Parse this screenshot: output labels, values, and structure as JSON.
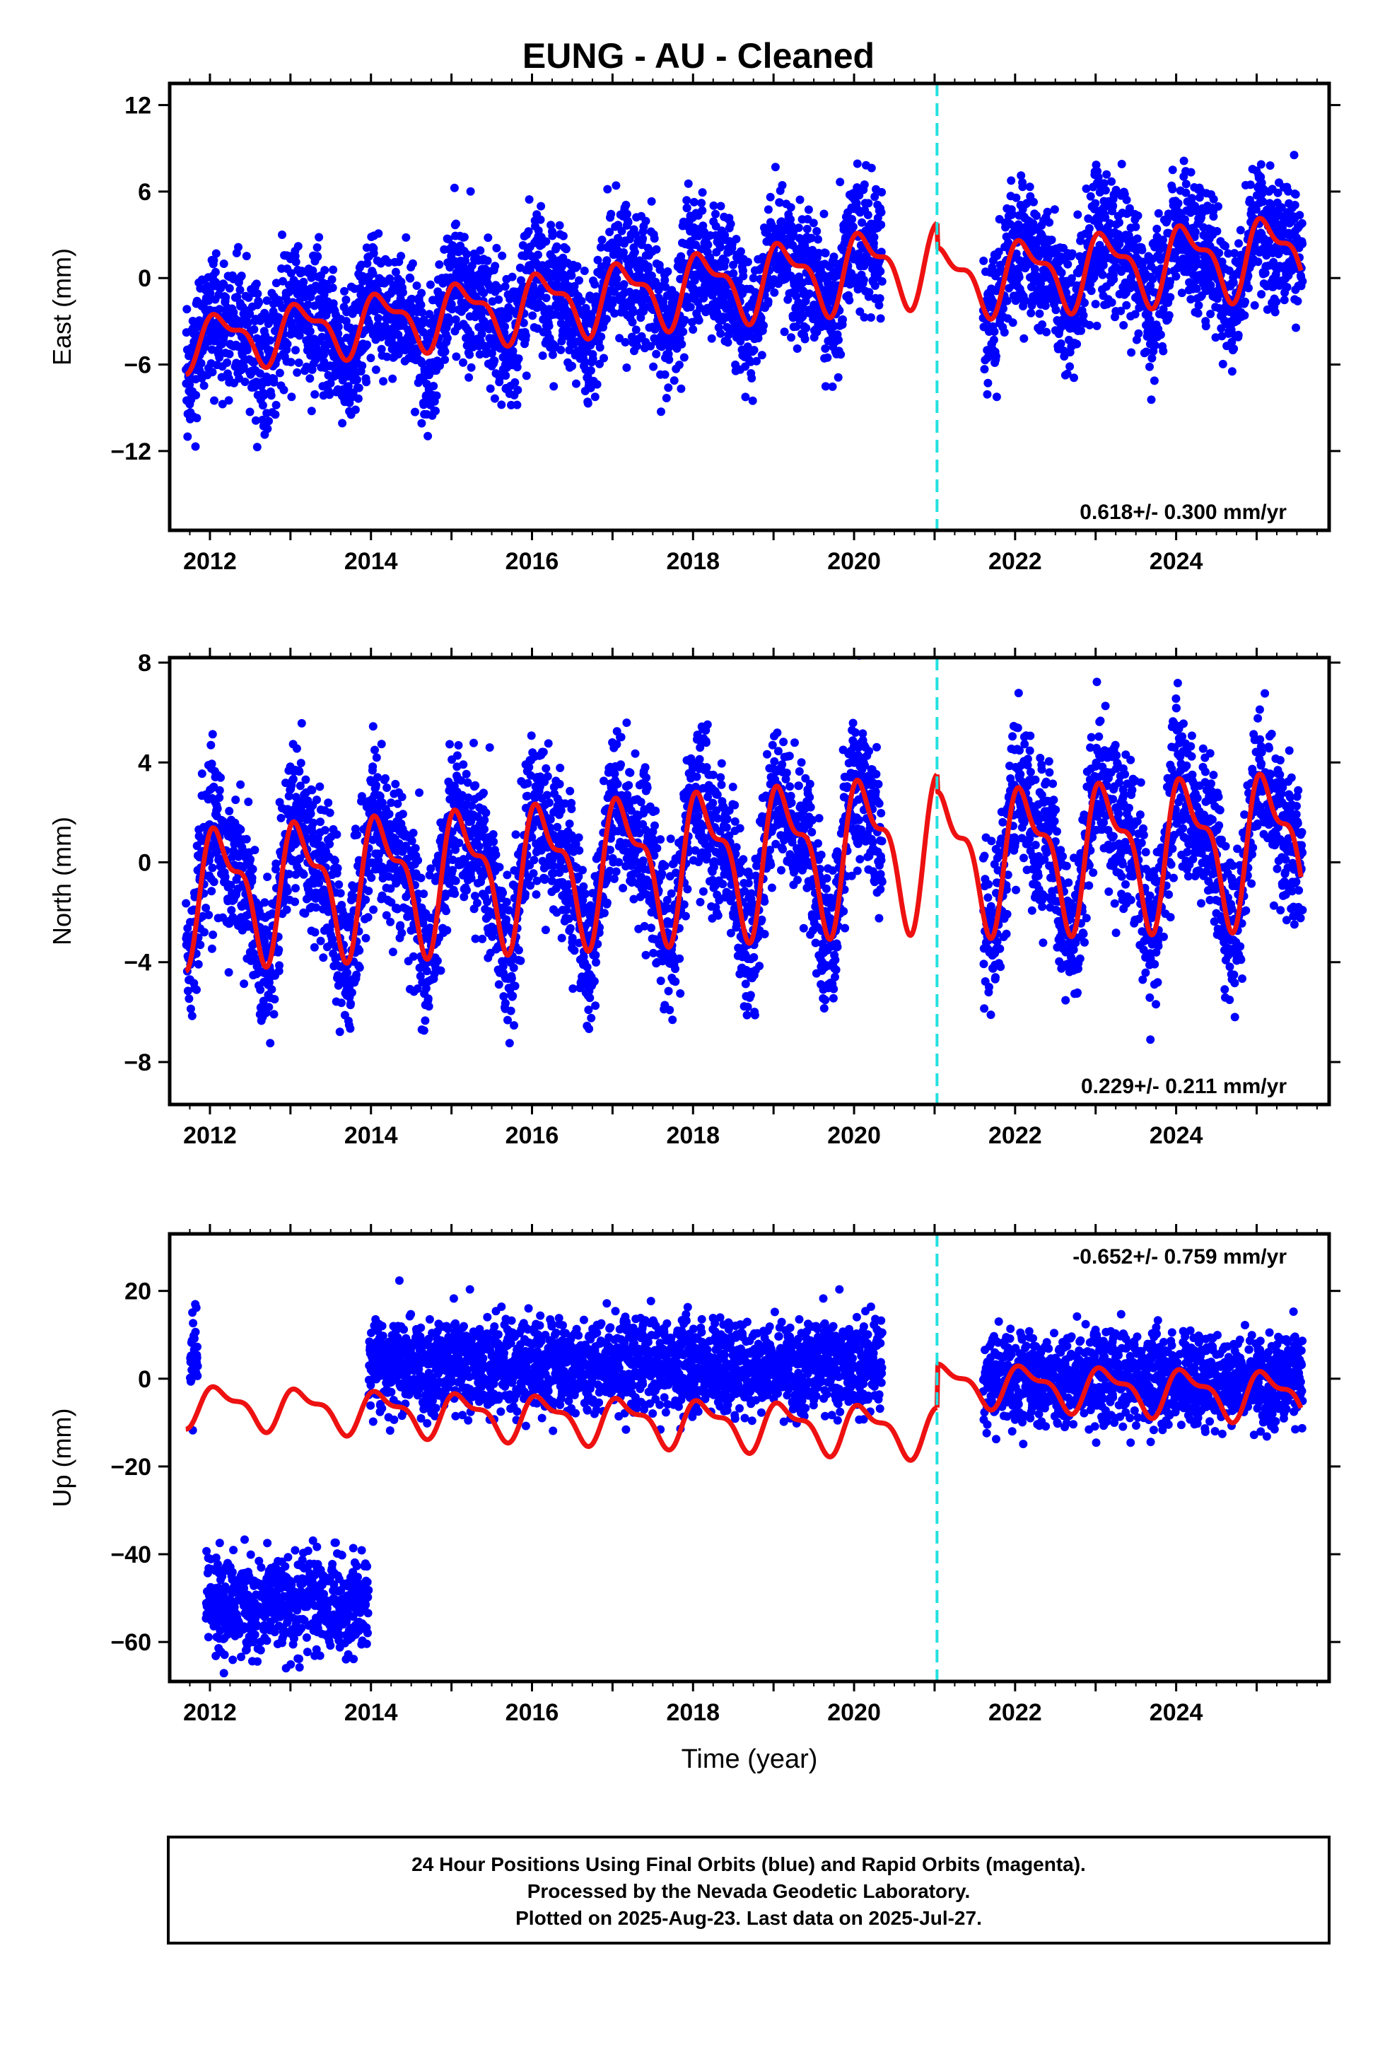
{
  "title": "EUNG  - AU - Cleaned",
  "xlabel": "Time (year)",
  "colors": {
    "points": "#0000ff",
    "model": "#ee1111",
    "break_line": "#22e0e0",
    "frame": "#000000"
  },
  "footer": {
    "line1": "24 Hour Positions Using Final Orbits (blue) and Rapid Orbits (magenta).",
    "line2": "Processed by the Nevada Geodetic Laboratory.",
    "line3": "Plotted on 2025-Aug-23. Last data on 2025-Jul-27."
  },
  "chart_data": [
    {
      "type": "scatter",
      "component": "East",
      "ylabel": "East (mm)",
      "rate_text": "0.618+/- 0.300 mm/yr",
      "rate_position": "bottom-right",
      "xlim": [
        2011.5,
        2025.9
      ],
      "ylim": [
        -17.5,
        13.5
      ],
      "xticks": [
        "2012",
        "2014",
        "2016",
        "2018",
        "2020",
        "2022",
        "2024"
      ],
      "yticks": [
        "12",
        "6",
        "0",
        "-6",
        "-12"
      ],
      "break_year": 2021.03,
      "data_gap": [
        2020.35,
        2021.6
      ],
      "trend_points": [
        [
          2011.75,
          -8.5
        ],
        [
          2013.5,
          -7.0
        ],
        [
          2014.0,
          -2.5
        ],
        [
          2016.0,
          0.5
        ],
        [
          2018.0,
          2.0
        ],
        [
          2020.0,
          2.0
        ],
        [
          2022.0,
          1.2
        ],
        [
          2024.0,
          1.5
        ],
        [
          2025.55,
          1.0
        ]
      ],
      "model_waves": [
        {
          "x": [
            2011.7,
            2021.03
          ],
          "base": [
            -4.5,
            1.2
          ],
          "amp": [
            1.6,
            2.4
          ]
        },
        {
          "x": [
            2021.03,
            2025.55
          ],
          "base": [
            -0.2,
            1.8
          ],
          "amp": [
            2.1,
            2.4
          ]
        }
      ],
      "scatter_sd": 2.4,
      "series": [
        {
          "name": "Final Orbits (blue)",
          "values": "daily positions 2011.7–2025.57"
        },
        {
          "name": "model fit (red)"
        }
      ]
    },
    {
      "type": "scatter",
      "component": "North",
      "ylabel": "North (mm)",
      "rate_text": "0.229+/- 0.211 mm/yr",
      "rate_position": "bottom-right",
      "xlim": [
        2011.5,
        2025.9
      ],
      "ylim": [
        -9.7,
        8.2
      ],
      "xticks": [
        "2012",
        "2014",
        "2016",
        "2018",
        "2020",
        "2022",
        "2024"
      ],
      "yticks": [
        "8",
        "4",
        "0",
        "-4",
        "-8"
      ],
      "break_year": 2021.03,
      "data_gap": [
        2020.35,
        2021.6
      ],
      "trend_points": [
        [
          2011.75,
          -3.0
        ],
        [
          2014.0,
          -1.2
        ],
        [
          2016.0,
          -1.0
        ],
        [
          2017.5,
          1.5
        ],
        [
          2019.0,
          1.8
        ],
        [
          2020.3,
          0.5
        ],
        [
          2022.0,
          0.5
        ],
        [
          2023.5,
          -0.5
        ],
        [
          2025.55,
          0.0
        ]
      ],
      "model_waves": [
        {
          "x": [
            2011.7,
            2021.03
          ],
          "base": [
            -1.2,
            0.7
          ],
          "amp": [
            2.3,
            2.6
          ]
        },
        {
          "x": [
            2021.03,
            2025.55
          ],
          "base": [
            0.2,
            0.8
          ],
          "amp": [
            2.4,
            2.6
          ]
        }
      ],
      "scatter_sd": 1.6,
      "series": [
        {
          "name": "Final Orbits (blue)",
          "values": "daily positions 2011.7–2025.57"
        },
        {
          "name": "model fit (red)"
        }
      ]
    },
    {
      "type": "scatter",
      "component": "Up",
      "ylabel": "Up (mm)",
      "rate_text": "-0.652+/- 0.759 mm/yr",
      "rate_position": "top-right",
      "xlim": [
        2011.5,
        2025.9
      ],
      "ylim": [
        -69,
        33
      ],
      "xticks": [
        "2012",
        "2014",
        "2016",
        "2018",
        "2020",
        "2022",
        "2024"
      ],
      "yticks": [
        "20",
        "0",
        "-20",
        "-40",
        "-60"
      ],
      "break_year": 2021.03,
      "data_gap": [
        2020.35,
        2021.6
      ],
      "offset_segments": [
        {
          "x": [
            2011.75,
            2011.85
          ],
          "level": 5
        },
        {
          "x": [
            2011.95,
            2013.97
          ],
          "level": -51
        },
        {
          "x": [
            2013.97,
            2020.35
          ],
          "level": 3
        },
        {
          "x": [
            2021.6,
            2025.57
          ],
          "level": 0
        }
      ],
      "model_waves": [
        {
          "x": [
            2011.7,
            2021.03
          ],
          "base": [
            -6,
            -12
          ],
          "amp": [
            4,
            5
          ]
        },
        {
          "x": [
            2021.03,
            2025.55
          ],
          "base": [
            -1,
            -4
          ],
          "amp": [
            4,
            5
          ]
        }
      ],
      "scatter_sd": 5.5,
      "series": [
        {
          "name": "Final Orbits (blue)",
          "values": "daily positions 2011.7–2025.57"
        },
        {
          "name": "model fit (red)"
        }
      ]
    }
  ]
}
